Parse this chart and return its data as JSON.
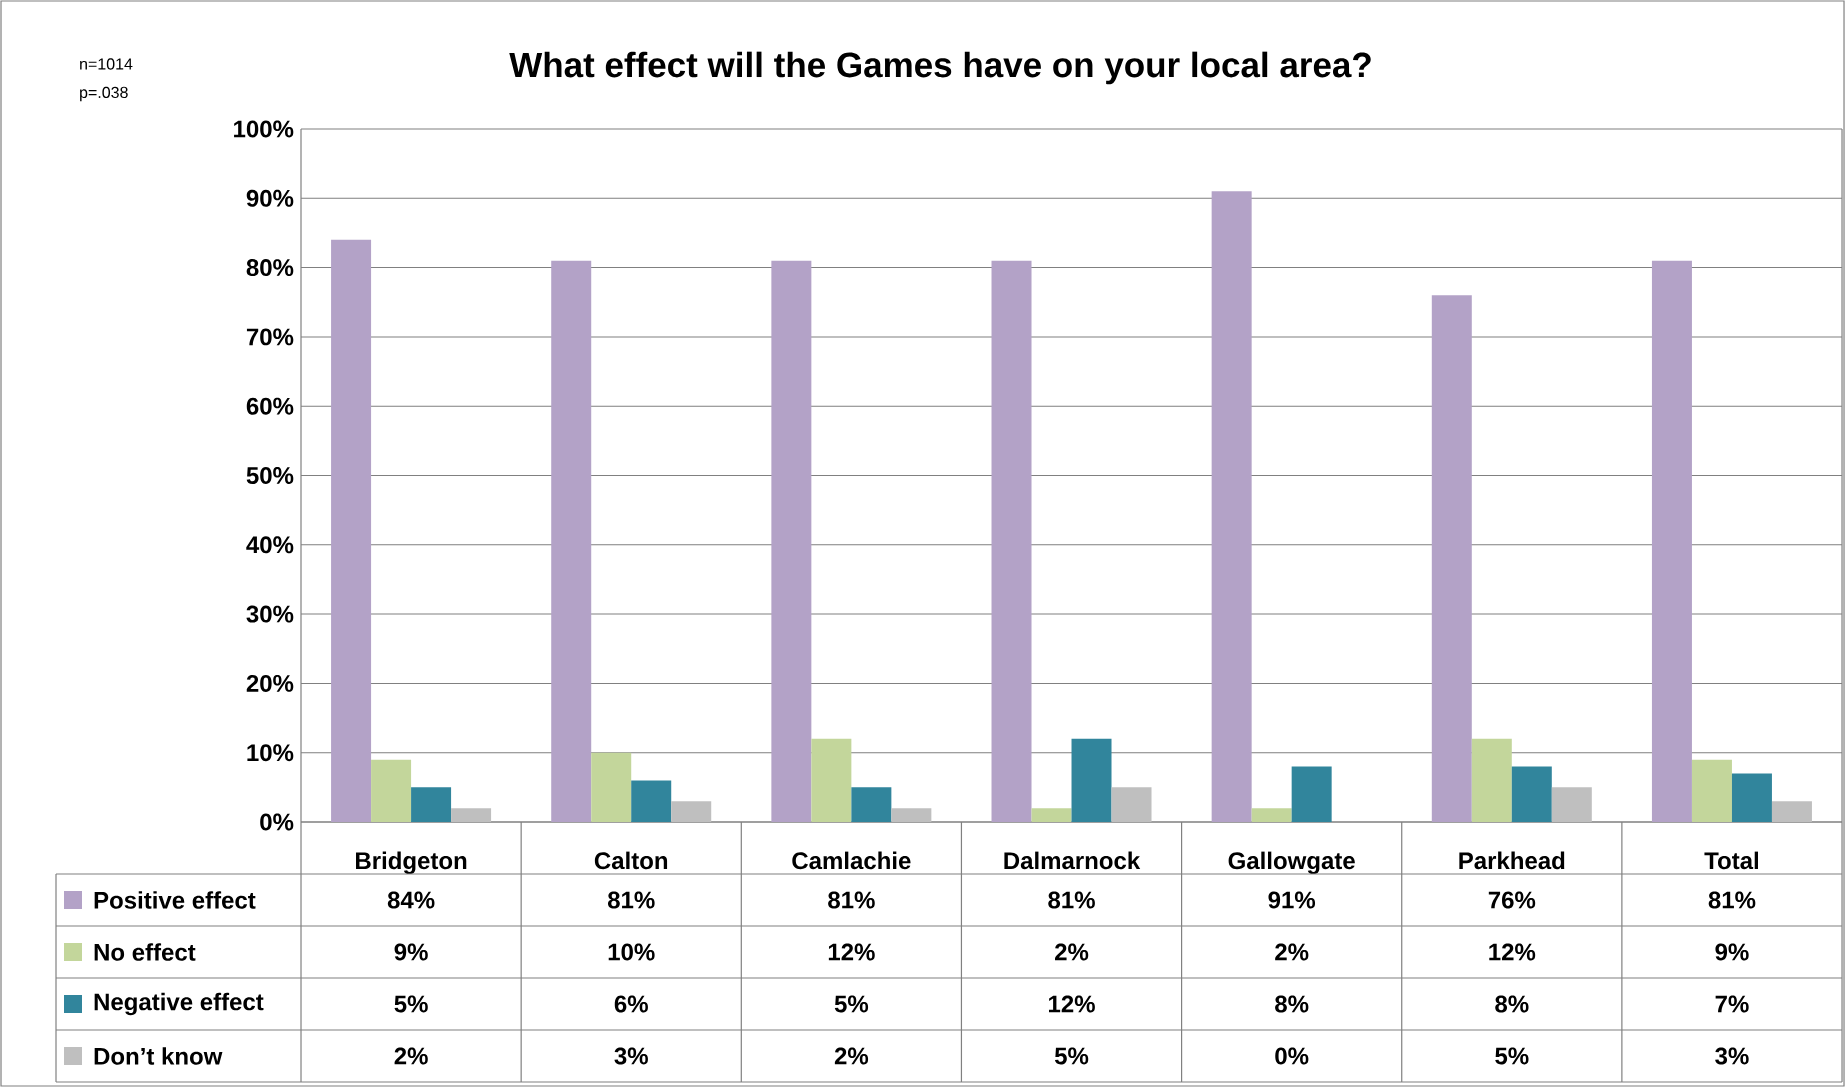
{
  "chart_data": {
    "type": "bar",
    "title": "What effect will the Games have on your local area?",
    "annotations": [
      "n=1014",
      "p=.038"
    ],
    "categories": [
      "Bridgeton",
      "Calton",
      "Camlachie",
      "Dalmarnock",
      "Gallowgate",
      "Parkhead",
      "Total"
    ],
    "series": [
      {
        "name": "Positive effect",
        "color": "#b3a2c7",
        "values": [
          84,
          81,
          81,
          81,
          91,
          76,
          81
        ],
        "value_labels": [
          "84%",
          "81%",
          "81%",
          "81%",
          "91%",
          "76%",
          "81%"
        ]
      },
      {
        "name": "No effect",
        "color": "#c3d69b",
        "values": [
          9,
          10,
          12,
          2,
          2,
          12,
          9
        ],
        "value_labels": [
          "9%",
          "10%",
          "12%",
          "2%",
          "2%",
          "12%",
          "9%"
        ]
      },
      {
        "name": "Negative effect",
        "color": "#31859c",
        "values": [
          5,
          6,
          5,
          12,
          8,
          8,
          7
        ],
        "value_labels": [
          "5%",
          "6%",
          "5%",
          "12%",
          "8%",
          "8%",
          "7%"
        ]
      },
      {
        "name": "Don’t know",
        "color": "#bfbfbf",
        "values": [
          2,
          3,
          2,
          5,
          0,
          5,
          3
        ],
        "value_labels": [
          "2%",
          "3%",
          "2%",
          "5%",
          "0%",
          "5%",
          "3%"
        ]
      }
    ],
    "ylim": [
      0,
      100
    ],
    "yticks": [
      {
        "value": 0,
        "label": "0%"
      },
      {
        "value": 10,
        "label": "10%"
      },
      {
        "value": 20,
        "label": "20%"
      },
      {
        "value": 30,
        "label": "30%"
      },
      {
        "value": 40,
        "label": "40%"
      },
      {
        "value": 50,
        "label": "50%"
      },
      {
        "value": 60,
        "label": "60%"
      },
      {
        "value": 70,
        "label": "70%"
      },
      {
        "value": 80,
        "label": "80%"
      },
      {
        "value": 90,
        "label": "90%"
      },
      {
        "value": 100,
        "label": "100%"
      }
    ],
    "grid": "y",
    "legend": "bottom left"
  }
}
